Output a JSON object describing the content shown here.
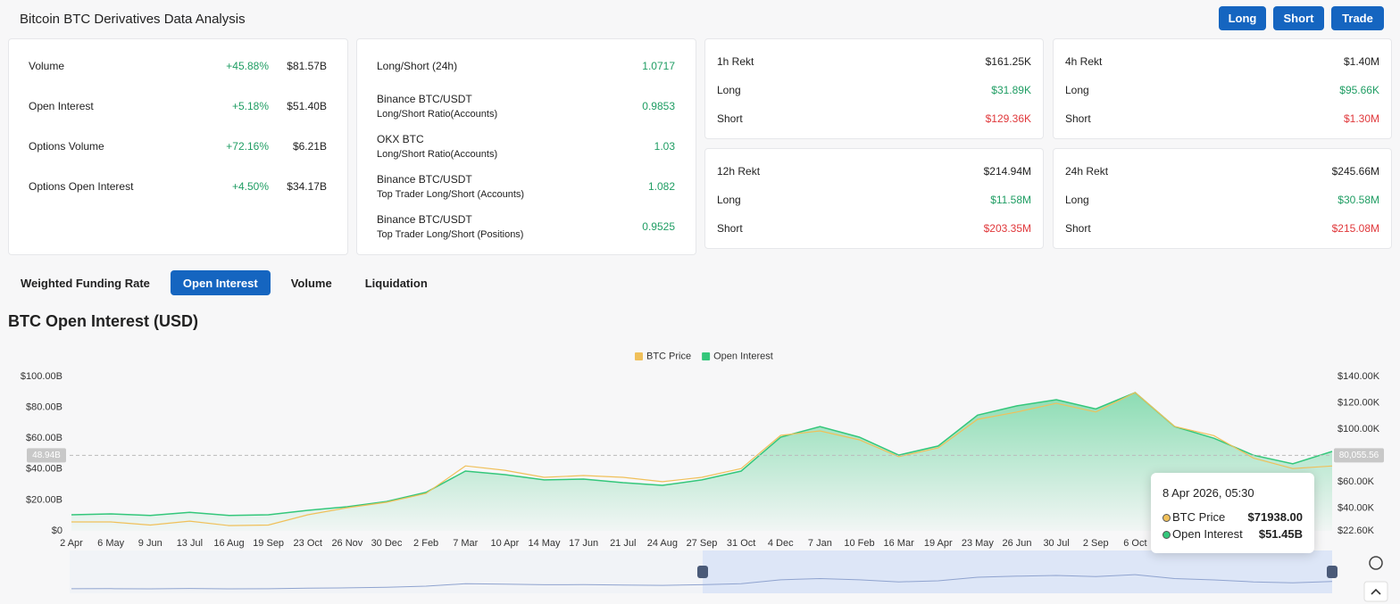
{
  "header": {
    "title": "Bitcoin BTC Derivatives Data Analysis",
    "buttons": [
      "Long",
      "Short",
      "Trade"
    ]
  },
  "summary": {
    "rows": [
      {
        "name": "Volume",
        "change": "+45.88%",
        "value": "$81.57B"
      },
      {
        "name": "Open Interest",
        "change": "+5.18%",
        "value": "$51.40B"
      },
      {
        "name": "Options Volume",
        "change": "+72.16%",
        "value": "$6.21B"
      },
      {
        "name": "Options Open Interest",
        "change": "+4.50%",
        "value": "$34.17B"
      }
    ]
  },
  "ratios": {
    "rows": [
      {
        "label": [
          "Long/Short (24h)"
        ],
        "value": "1.0717"
      },
      {
        "label": [
          "Binance BTC/USDT",
          "Long/Short Ratio(Accounts)"
        ],
        "value": "0.9853"
      },
      {
        "label": [
          "OKX BTC",
          "Long/Short Ratio(Accounts)"
        ],
        "value": "1.03"
      },
      {
        "label": [
          "Binance BTC/USDT",
          "Top Trader Long/Short (Accounts)"
        ],
        "value": "1.082"
      },
      {
        "label": [
          "Binance BTC/USDT",
          "Top Trader Long/Short (Positions)"
        ],
        "value": "0.9525"
      }
    ]
  },
  "rekt": [
    {
      "rows": [
        [
          "1h Rekt",
          "$161.25K"
        ],
        [
          "Long",
          "$31.89K"
        ],
        [
          "Short",
          "$129.36K"
        ]
      ]
    },
    {
      "rows": [
        [
          "4h Rekt",
          "$1.40M"
        ],
        [
          "Long",
          "$95.66K"
        ],
        [
          "Short",
          "$1.30M"
        ]
      ]
    },
    {
      "rows": [
        [
          "12h Rekt",
          "$214.94M"
        ],
        [
          "Long",
          "$11.58M"
        ],
        [
          "Short",
          "$203.35M"
        ]
      ]
    },
    {
      "rows": [
        [
          "24h Rekt",
          "$245.66M"
        ],
        [
          "Long",
          "$30.58M"
        ],
        [
          "Short",
          "$215.08M"
        ]
      ]
    }
  ],
  "tabs": {
    "items": [
      "Weighted Funding Rate",
      "Open Interest",
      "Volume",
      "Liquidation"
    ],
    "active": 1
  },
  "chart_data": {
    "type": "line",
    "title": "BTC Open Interest (USD)",
    "categories": [
      "2 Apr",
      "6 May",
      "9 Jun",
      "13 Jul",
      "16 Aug",
      "19 Sep",
      "23 Oct",
      "26 Nov",
      "30 Dec",
      "2 Feb",
      "7 Mar",
      "10 Apr",
      "14 May",
      "17 Jun",
      "21 Jul",
      "24 Aug",
      "27 Sep",
      "31 Oct",
      "4 Dec",
      "7 Jan",
      "10 Feb",
      "16 Mar",
      "19 Apr",
      "23 May",
      "26 Jun",
      "30 Jul",
      "2 Sep",
      "6 Oct",
      null,
      null,
      null,
      null,
      null
    ],
    "series": [
      {
        "name": "BTC Price",
        "color": "#f0c05a",
        "axis": "y2",
        "values": [
          29400,
          29400,
          27000,
          30000,
          26600,
          27000,
          34800,
          40200,
          44300,
          51000,
          72000,
          68700,
          63300,
          64700,
          63300,
          60000,
          63300,
          70000,
          95200,
          98600,
          91800,
          79000,
          85700,
          107400,
          113000,
          119600,
          113000,
          127800,
          102000,
          95000,
          78000,
          70000,
          71938
        ]
      },
      {
        "name": "Open Interest",
        "color": "#34c77b",
        "values": [
          10.4,
          11,
          10,
          12,
          10,
          10.4,
          13.3,
          15.6,
          19,
          24.9,
          38.7,
          36.4,
          33,
          33.5,
          31.2,
          29.5,
          33,
          38.7,
          60.7,
          67.6,
          60.7,
          49.1,
          55,
          75,
          81,
          85,
          79,
          89.6,
          67.6,
          60,
          49,
          43.4,
          51.45
        ]
      }
    ],
    "ylim": [
      0,
      100
    ],
    "yticks": [
      {
        "value": 0,
        "label": "$0"
      },
      {
        "value": 20,
        "label": "$20.00B"
      },
      {
        "value": 40,
        "label": "$40.00B"
      },
      {
        "value": 60,
        "label": "$60.00B"
      },
      {
        "value": 80,
        "label": "$80.00B"
      },
      {
        "value": 100,
        "label": "$100.00B"
      }
    ],
    "y2lim": [
      22600,
      140000
    ],
    "y2ticks": [
      {
        "value": 22600,
        "label": "$22.60K"
      },
      {
        "value": 40000,
        "label": "$40.00K"
      },
      {
        "value": 60000,
        "label": "$60.00K"
      },
      {
        "value": 80000,
        "label": "$80.00K"
      },
      {
        "value": 100000,
        "label": "$100.00K"
      },
      {
        "value": 120000,
        "label": "$120.00K"
      },
      {
        "value": 140000,
        "label": "$140.00K"
      }
    ],
    "grid": false,
    "legend": "top",
    "crosshair": {
      "y": {
        "value": 48.94,
        "label": "48.94B"
      },
      "y2": {
        "value": 80055.56,
        "label": "80,055.56"
      }
    },
    "tooltip": {
      "title": "8 Apr 2026, 05:30",
      "rows": [
        {
          "value": 71938,
          "label": "$71938.00"
        },
        {
          "value": 51.45,
          "label": "$51.45B"
        }
      ]
    }
  }
}
